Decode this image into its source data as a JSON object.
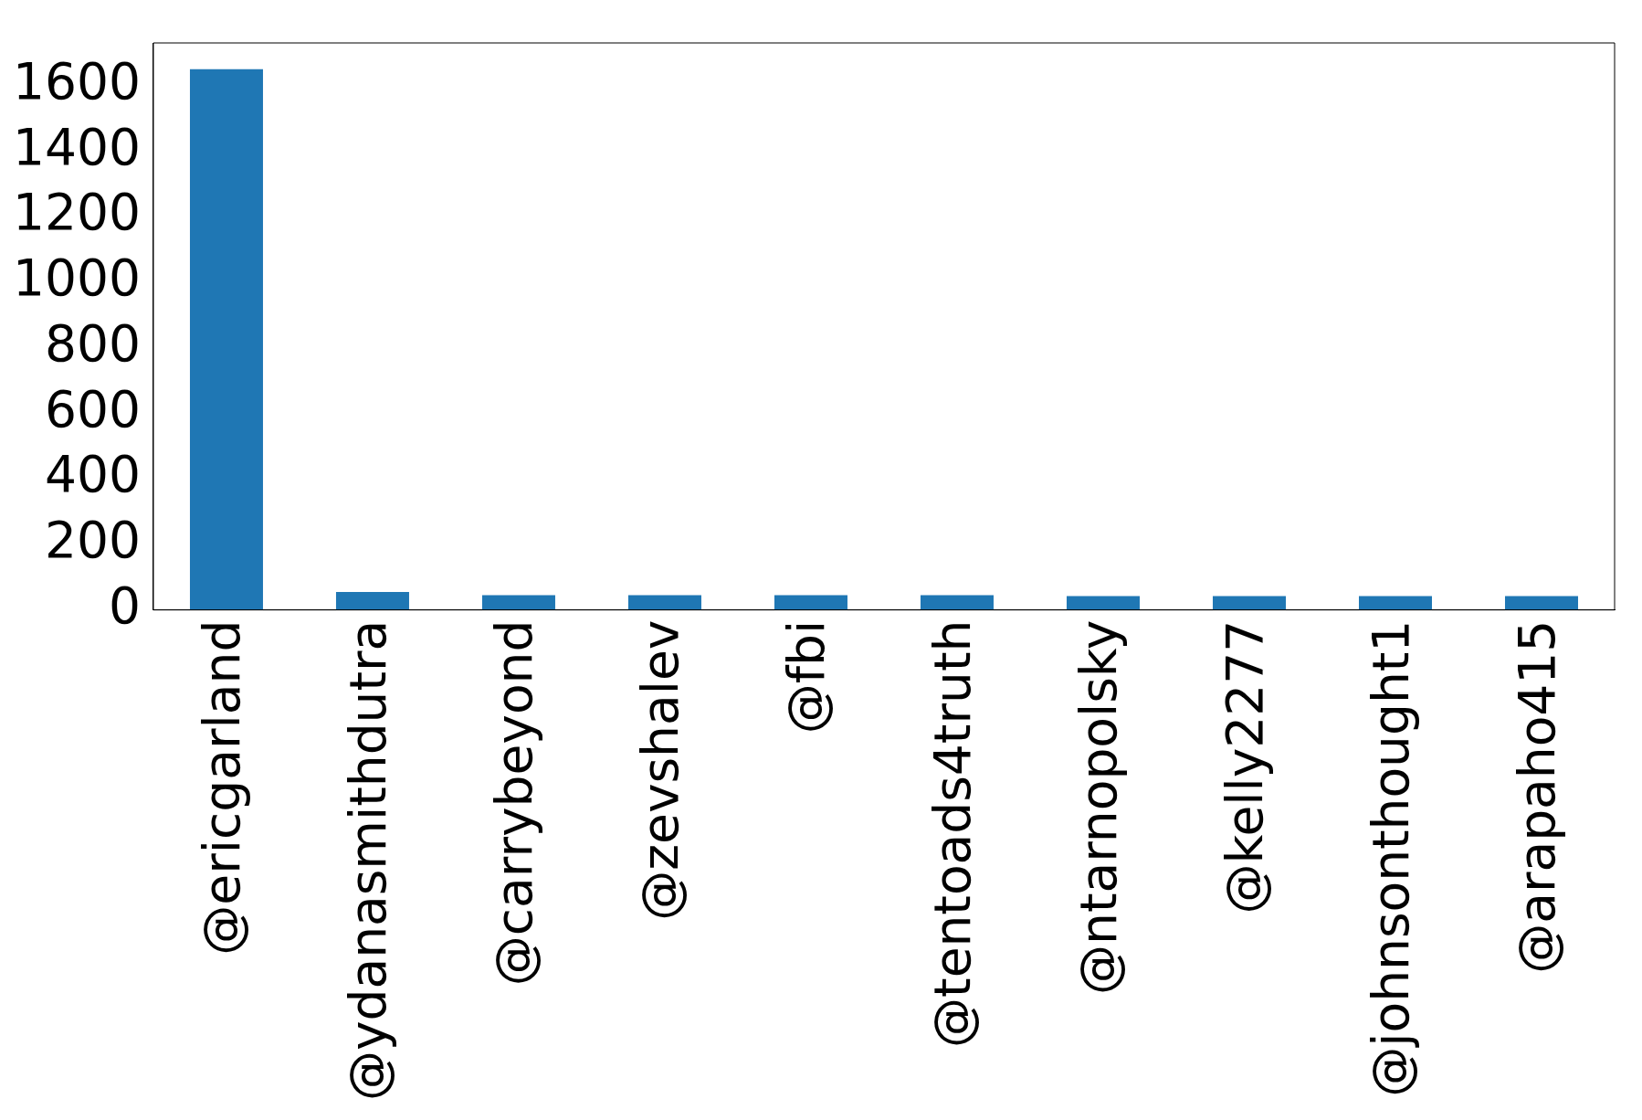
{
  "chart_data": {
    "type": "bar",
    "categories": [
      "@ericgarland",
      "@ydanasmithdutra",
      "@carrybeyond",
      "@zevshalev",
      "@fbi",
      "@tentoads4truth",
      "@ntarnopolsky",
      "@kelly2277",
      "@johnsonthought1",
      "@arapaho415"
    ],
    "values": [
      1650,
      55,
      45,
      45,
      45,
      45,
      42,
      42,
      42,
      42
    ],
    "color": "#1f77b4",
    "ylim": [
      0,
      1730
    ],
    "yticks": [
      0,
      200,
      400,
      600,
      800,
      1000,
      1200,
      1400,
      1600
    ],
    "grid": false,
    "legend": false
  }
}
